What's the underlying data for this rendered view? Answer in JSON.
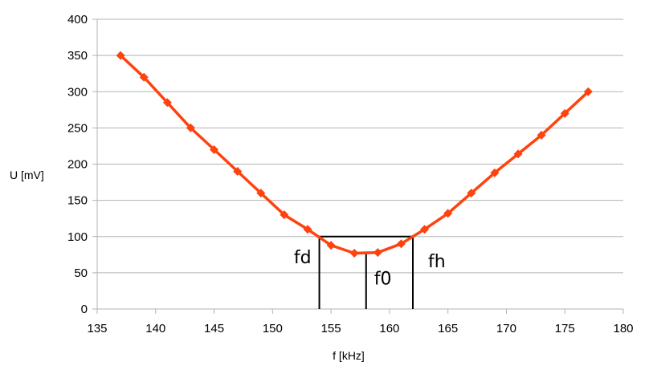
{
  "chart_data": {
    "type": "line",
    "title": "",
    "xlabel": "f [kHz]",
    "ylabel": "U [mV]",
    "xlim": [
      135,
      180
    ],
    "ylim": [
      0,
      400
    ],
    "x_ticks": [
      135,
      140,
      145,
      150,
      155,
      160,
      165,
      170,
      175,
      180
    ],
    "y_ticks": [
      0,
      50,
      100,
      150,
      200,
      250,
      300,
      350,
      400
    ],
    "grid": "horizontal",
    "legend": "none",
    "series": [
      {
        "color": "#ff420e",
        "marker": "diamond",
        "x": [
          137,
          139,
          141,
          143,
          145,
          147,
          149,
          151,
          153,
          155,
          157,
          159,
          161,
          163,
          165,
          167,
          169,
          171,
          173,
          175,
          177
        ],
        "y": [
          350,
          320,
          285,
          250,
          220,
          190,
          160,
          130,
          110,
          88,
          77,
          78,
          90,
          110,
          132,
          160,
          188,
          214,
          240,
          270,
          300
        ]
      }
    ],
    "annotations": [
      {
        "text": "fd",
        "x": 154,
        "y": 100
      },
      {
        "text": "f0",
        "x": 158,
        "y": 77
      },
      {
        "text": "fh",
        "x": 162,
        "y": 100
      }
    ],
    "bandwidth_box": {
      "x1": 154,
      "x2": 162,
      "y": 100
    },
    "center_line": {
      "x": 158,
      "y": 77
    }
  }
}
